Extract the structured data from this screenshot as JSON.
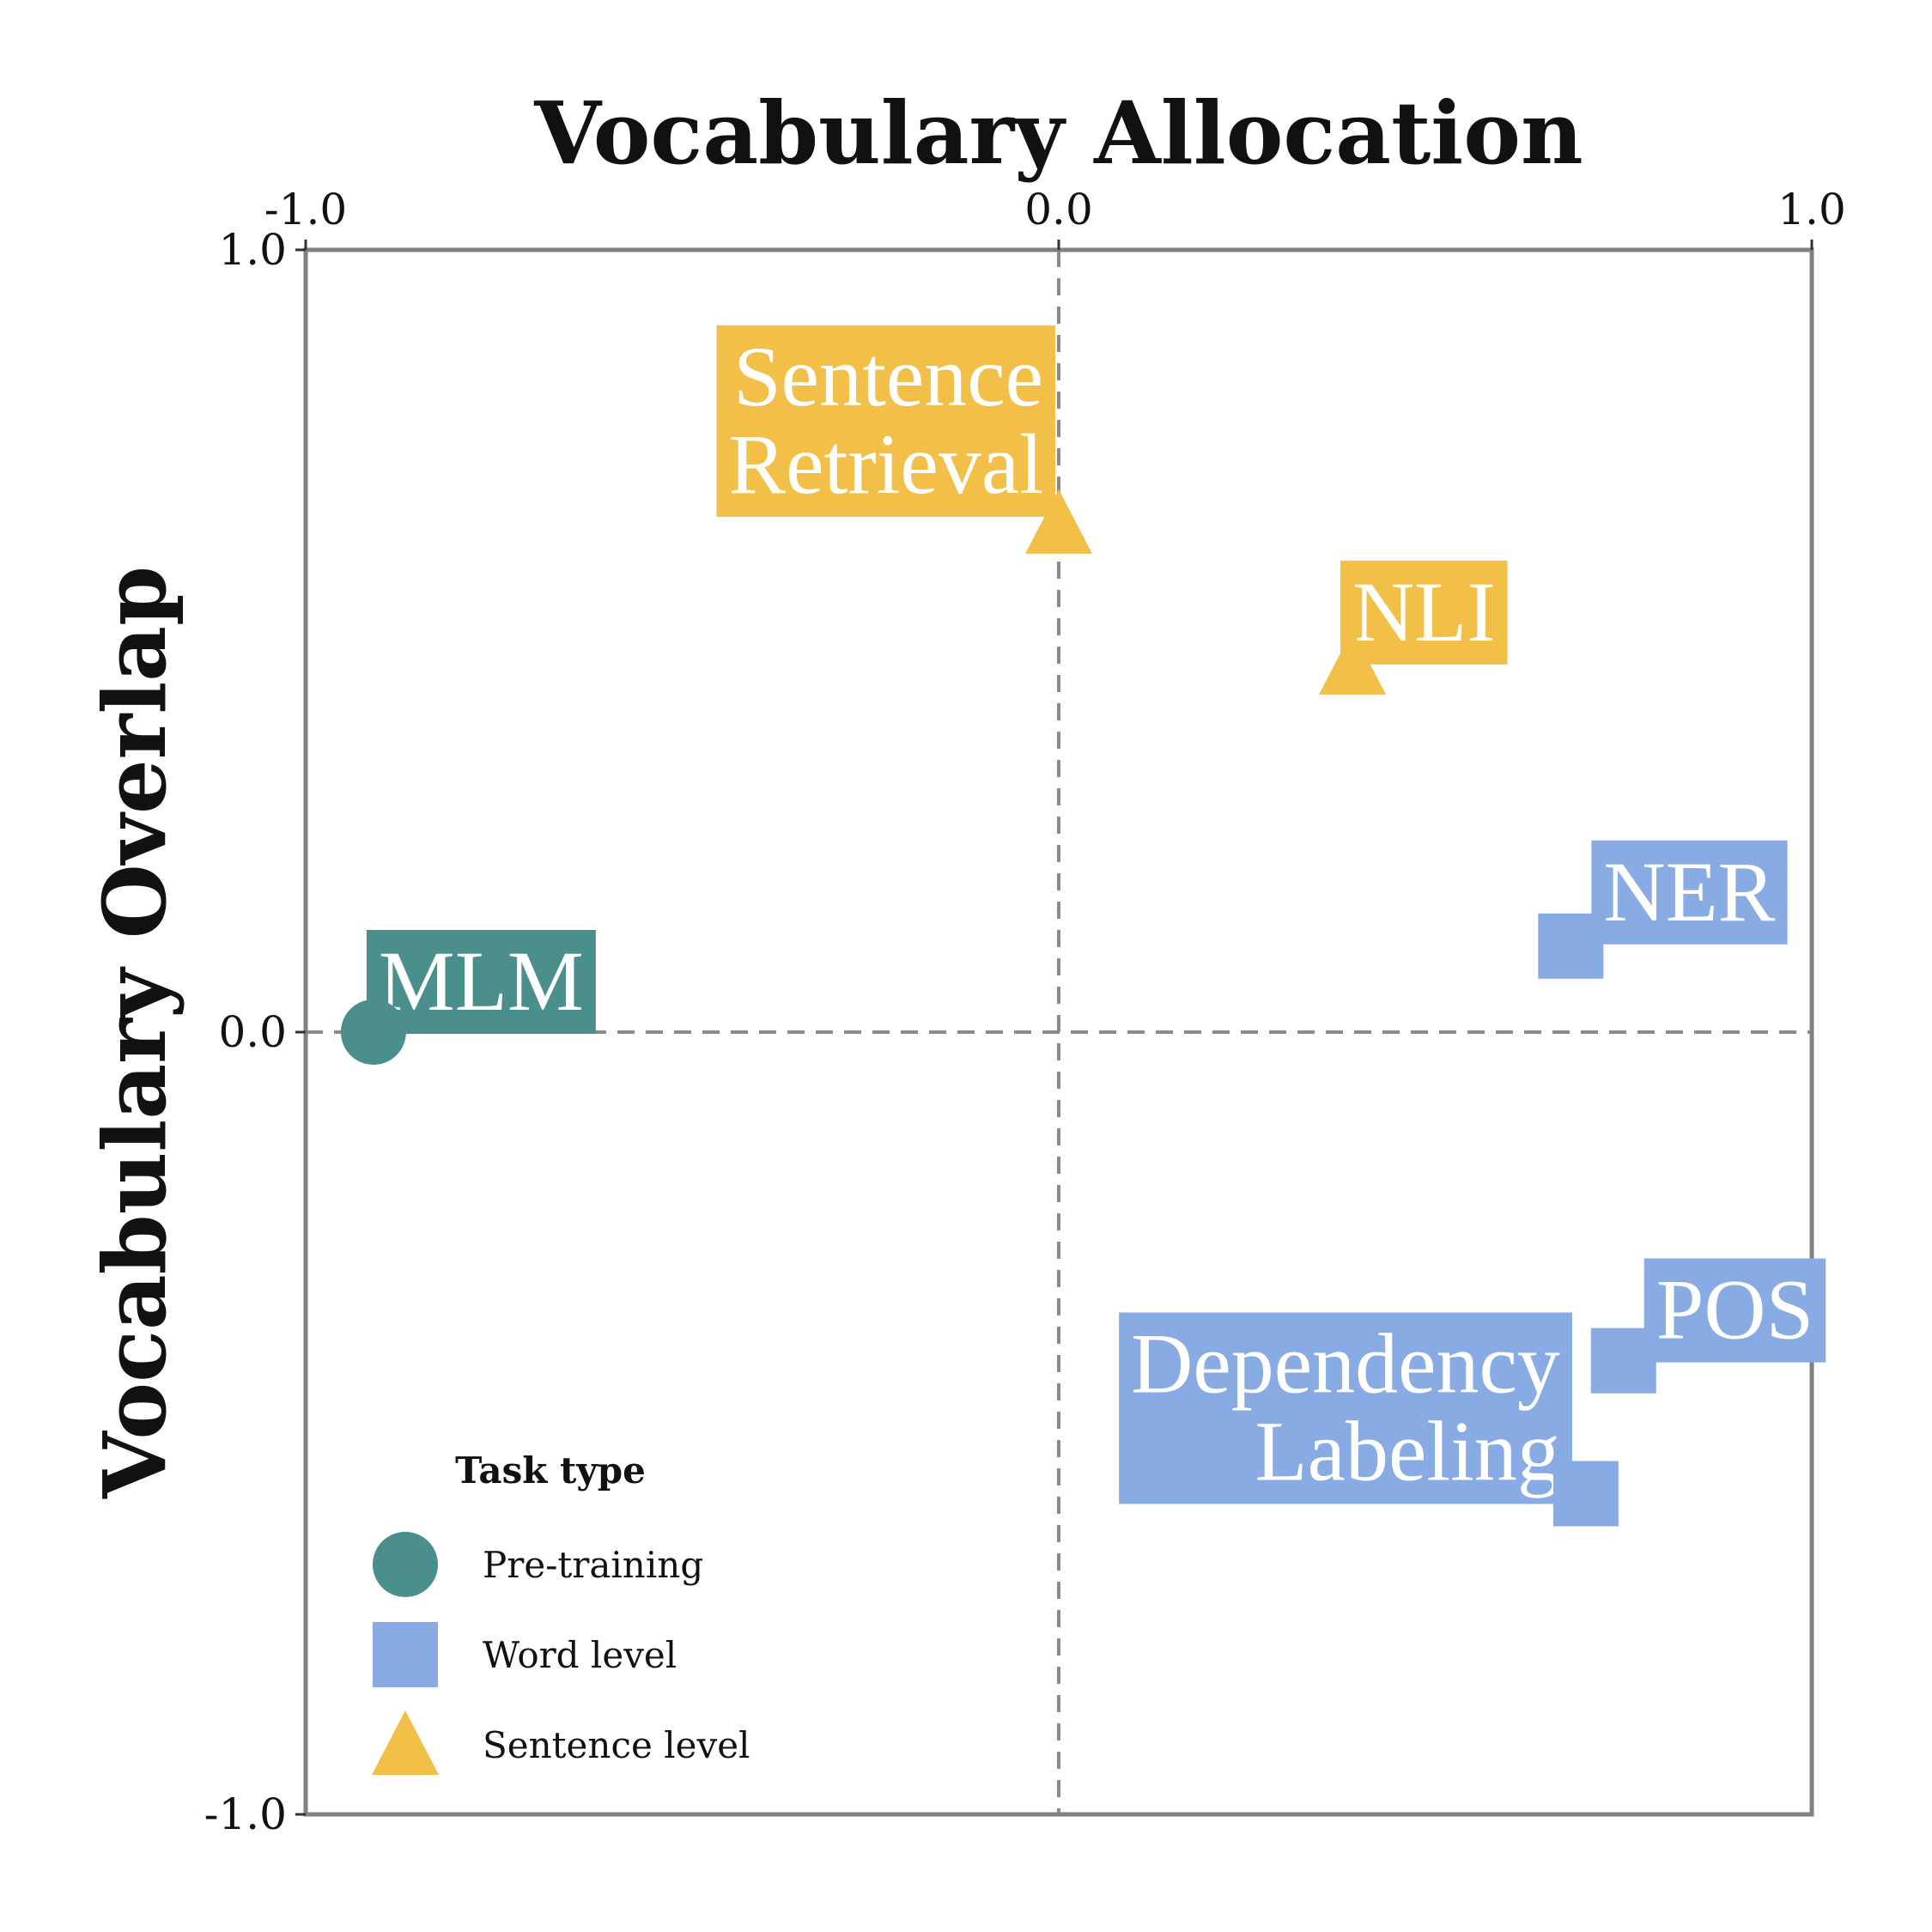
{
  "chart_data": {
    "type": "scatter",
    "title": "",
    "xlabel": "Vocabulary Allocation",
    "ylabel": "Vocabulary Overlap",
    "xlim": [
      -1.0,
      1.0
    ],
    "ylim": [
      -1.0,
      1.0
    ],
    "x_ticks": [
      "-1.0",
      "0.0",
      "1.0"
    ],
    "y_ticks": [
      "1.0",
      "0.0",
      "-1.0"
    ],
    "reference_lines": {
      "x": 0.0,
      "y": 0.0,
      "style": "dashed"
    },
    "grid": false,
    "legend": {
      "title": "Task type",
      "position": "bottom-left",
      "entries": [
        {
          "label": "Pre-training",
          "marker": "circle",
          "color": "#4A8F8C"
        },
        {
          "label": "Word level",
          "marker": "square",
          "color": "#88ABE4"
        },
        {
          "label": "Sentence level",
          "marker": "triangle",
          "color": "#F2BF48"
        }
      ]
    },
    "points": [
      {
        "label": "MLM",
        "x": -0.91,
        "y": 0.0,
        "category": "Pre-training",
        "marker": "circle",
        "color": "#4A8F8C"
      },
      {
        "label": "Sentence Retrieval",
        "lines": [
          "Sentence",
          "Retrieval"
        ],
        "x": 0.0,
        "y": 0.65,
        "category": "Sentence level",
        "marker": "triangle",
        "color": "#F2BF48"
      },
      {
        "label": "NLI",
        "x": 0.39,
        "y": 0.47,
        "category": "Sentence level",
        "marker": "triangle",
        "color": "#F2BF48"
      },
      {
        "label": "NER",
        "x": 0.68,
        "y": 0.11,
        "category": "Word level",
        "marker": "square",
        "color": "#88ABE4"
      },
      {
        "label": "POS",
        "x": 0.75,
        "y": -0.42,
        "category": "Word level",
        "marker": "square",
        "color": "#88ABE4"
      },
      {
        "label": "Dependency Labeling",
        "lines": [
          "Dependency",
          "Labeling"
        ],
        "x": 0.7,
        "y": -0.59,
        "category": "Word level",
        "marker": "square",
        "color": "#88ABE4"
      }
    ]
  }
}
